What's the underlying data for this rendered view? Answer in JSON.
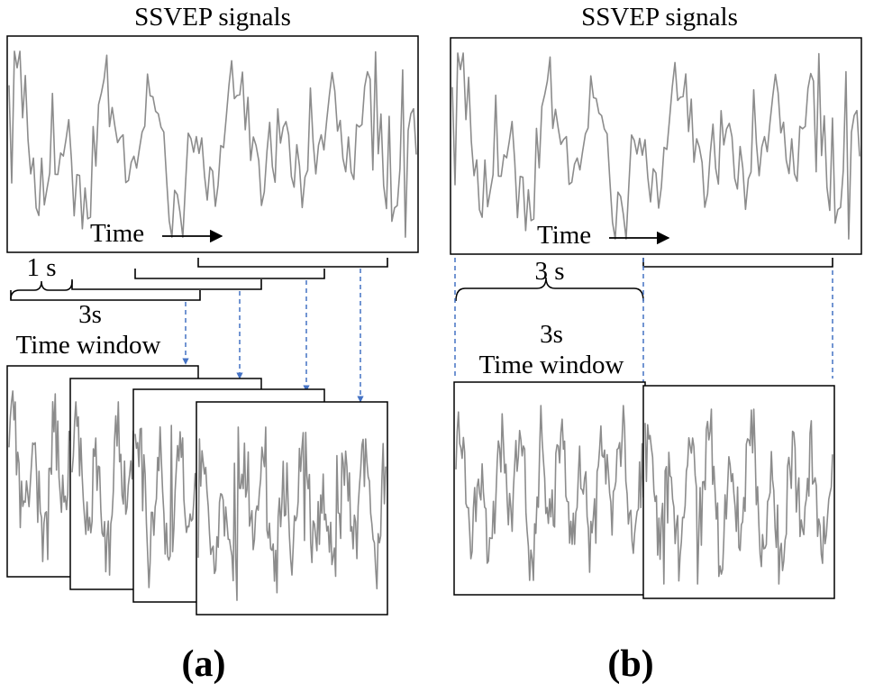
{
  "panel_a": {
    "title": "SSVEP signals",
    "time_label": "Time",
    "step_label": "1 s",
    "window_length_label": "3s",
    "window_label": "Time window",
    "caption": "(a)"
  },
  "panel_b": {
    "title": "SSVEP signals",
    "time_label": "Time",
    "segment_label": "3 s",
    "window_length_label": "3s",
    "window_label": "Time window",
    "caption": "(b)"
  },
  "colors": {
    "signal": "#8c8c8c",
    "frame": "#000000",
    "dashed_arrow": "#4472c4",
    "background": "#ffffff"
  }
}
